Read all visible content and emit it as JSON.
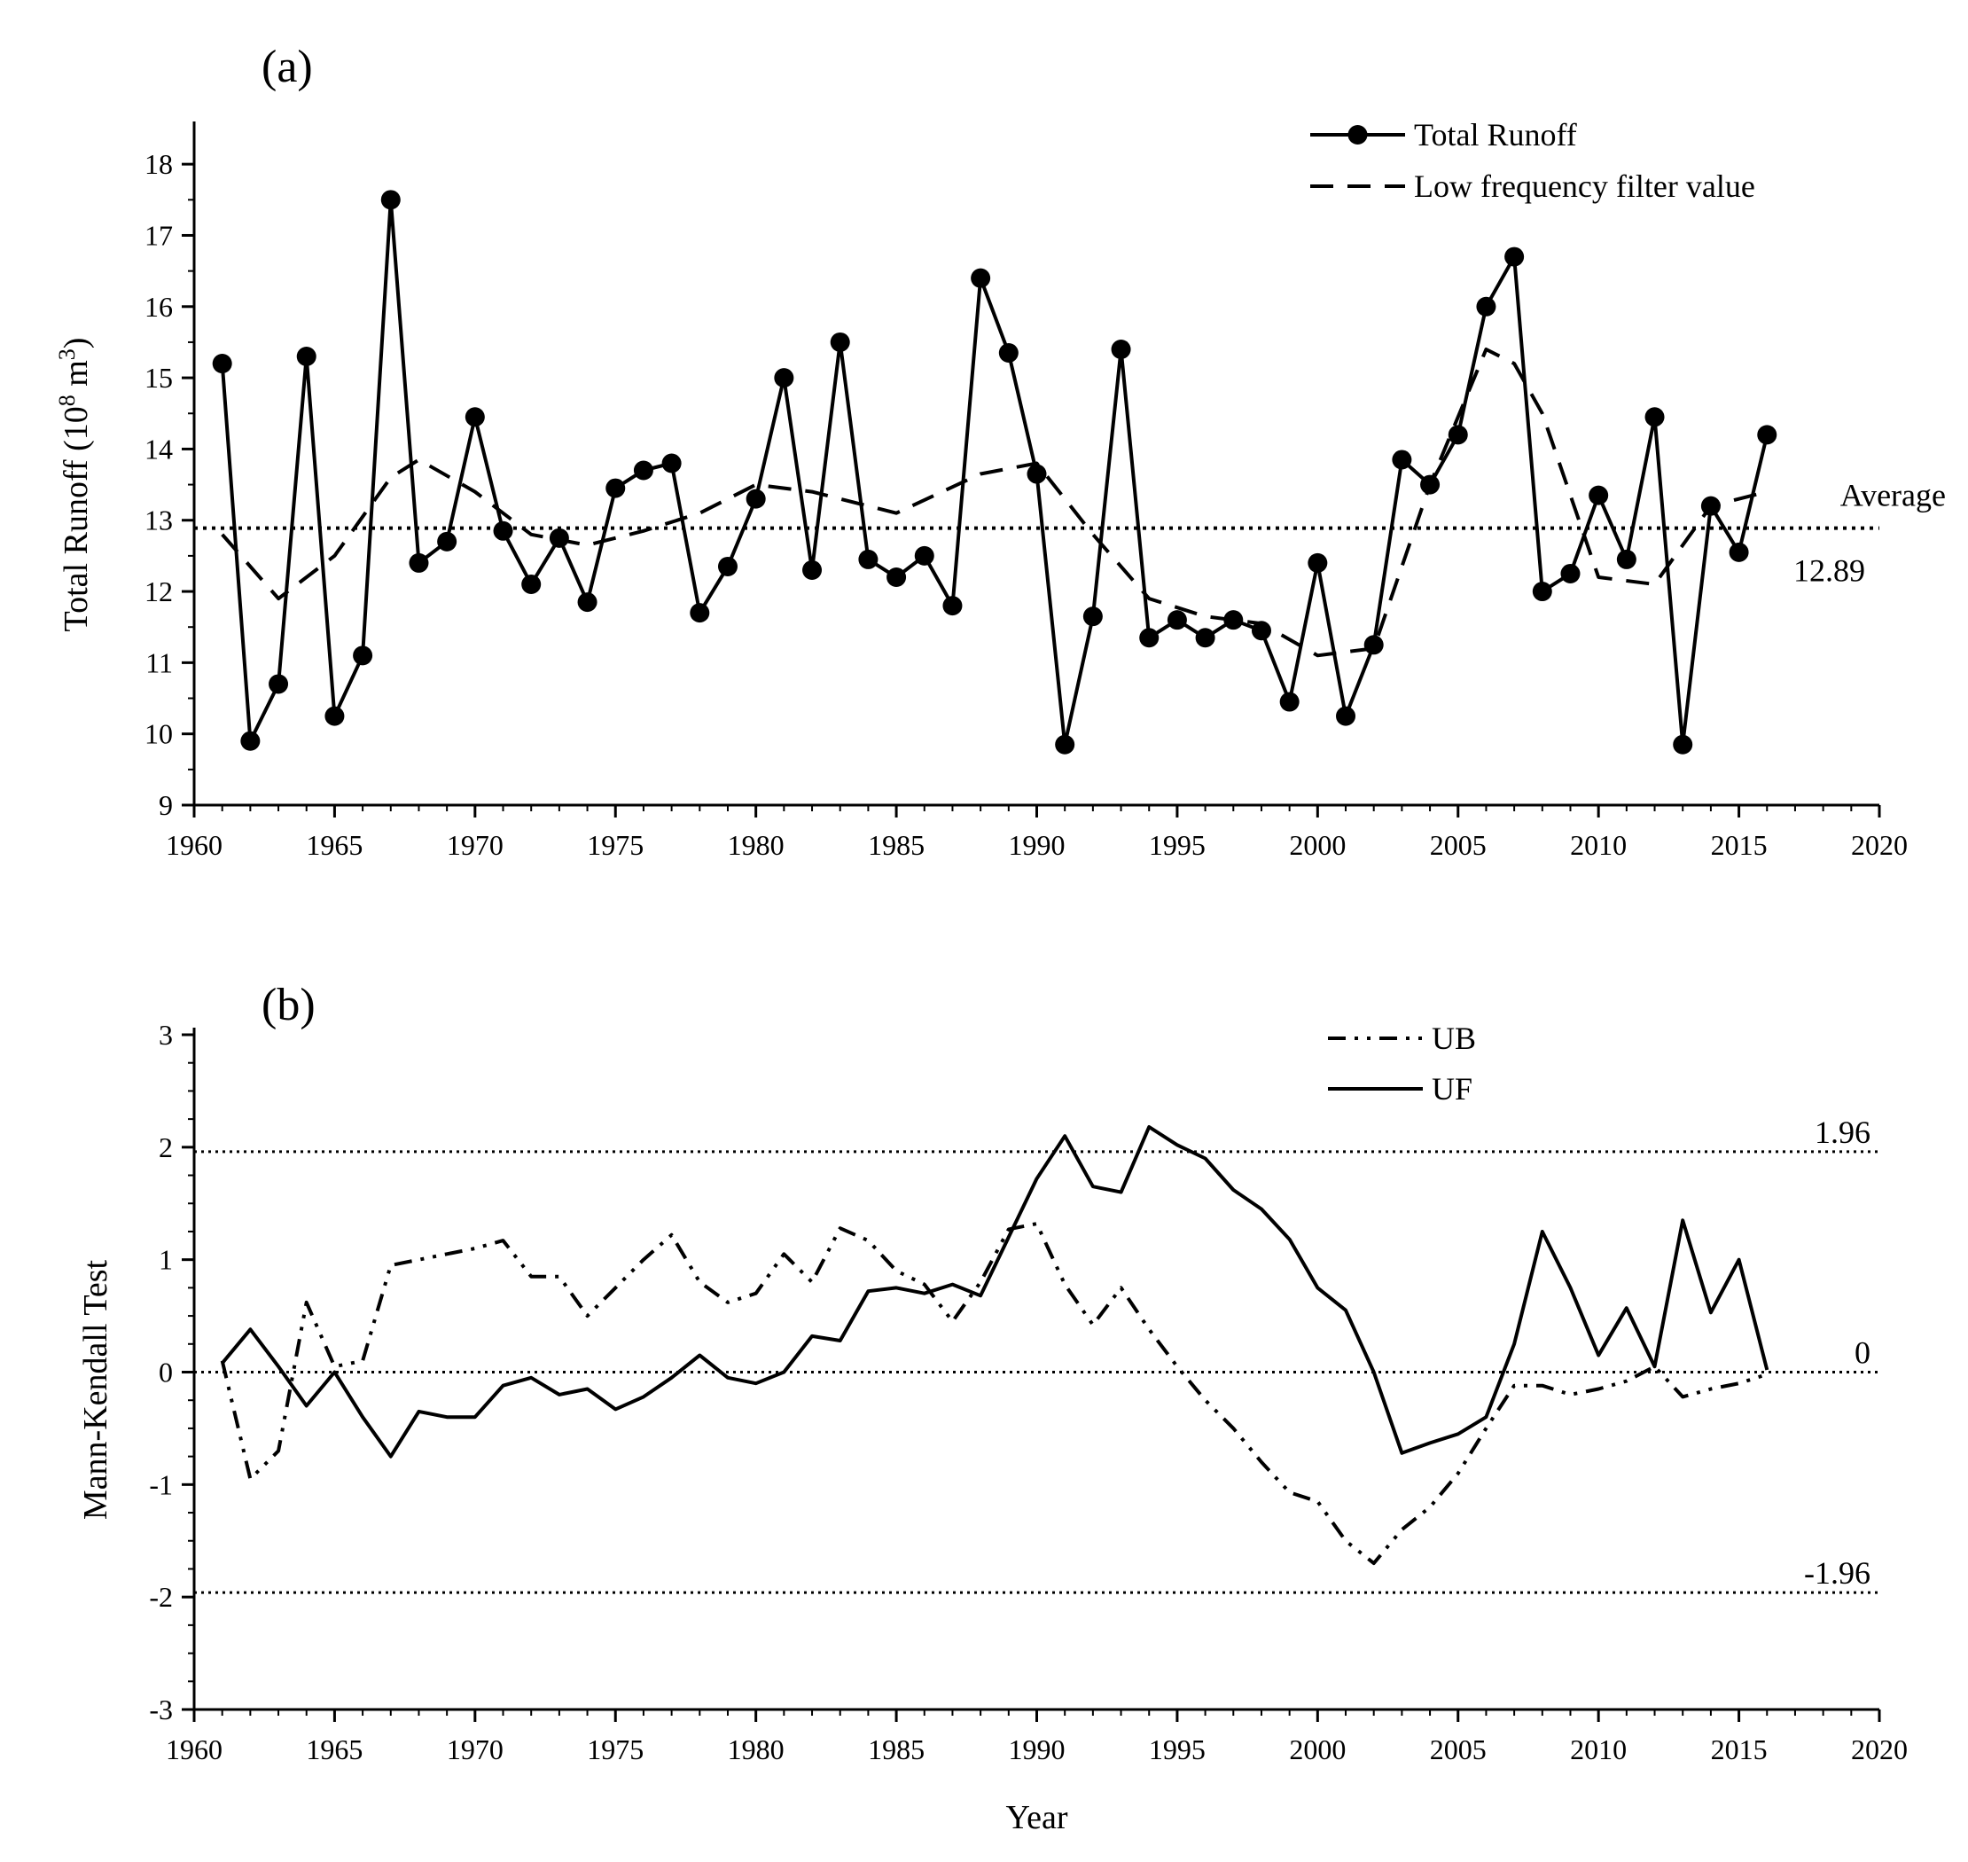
{
  "chart_data": [
    {
      "id": "a",
      "type": "line",
      "panel_label": "(a)",
      "title": "",
      "xlabel": "",
      "ylabel": "Total Runoff (10",
      "ylabel_sup1": "8",
      "ylabel_mid": " m",
      "ylabel_sup2": "3",
      "ylabel_end": ")",
      "xlim": [
        1960,
        2020
      ],
      "ylim": [
        9,
        18.5
      ],
      "x_ticks": [
        "1960",
        "1965",
        "1970",
        "1975",
        "1980",
        "1985",
        "1990",
        "1995",
        "2000",
        "2005",
        "2010",
        "2015",
        "2020"
      ],
      "y_ticks": [
        "9",
        "10",
        "11",
        "12",
        "13",
        "14",
        "15",
        "16",
        "17",
        "18"
      ],
      "x": [
        1961,
        1962,
        1963,
        1964,
        1965,
        1966,
        1967,
        1968,
        1969,
        1970,
        1971,
        1972,
        1973,
        1974,
        1975,
        1976,
        1977,
        1978,
        1979,
        1980,
        1981,
        1982,
        1983,
        1984,
        1985,
        1986,
        1987,
        1988,
        1989,
        1990,
        1991,
        1992,
        1993,
        1994,
        1995,
        1996,
        1997,
        1998,
        1999,
        2000,
        2001,
        2002,
        2003,
        2004,
        2005,
        2006,
        2007,
        2008,
        2009,
        2010,
        2011,
        2012,
        2013,
        2014,
        2015,
        2016
      ],
      "series": [
        {
          "name": "Total Runoff",
          "style": "solid-markers",
          "values": [
            15.2,
            9.9,
            10.7,
            15.3,
            10.25,
            11.1,
            17.5,
            12.4,
            12.7,
            14.45,
            12.85,
            12.1,
            12.75,
            11.85,
            13.45,
            13.7,
            13.8,
            11.7,
            12.35,
            13.3,
            15.0,
            12.3,
            15.5,
            12.45,
            12.2,
            12.5,
            11.8,
            16.4,
            15.35,
            13.65,
            9.85,
            11.65,
            15.4,
            11.35,
            11.6,
            11.35,
            11.6,
            11.45,
            10.45,
            12.4,
            10.25,
            11.25,
            13.85,
            13.5,
            14.2,
            16.0,
            16.7,
            12.0,
            12.25,
            13.35,
            12.45,
            14.45,
            9.85,
            13.2,
            12.55,
            14.2
          ]
        },
        {
          "name": "Low frequency filter value",
          "style": "dashed",
          "x": [
            1961,
            1963,
            1965,
            1967,
            1968,
            1970,
            1972,
            1974,
            1976,
            1978,
            1980,
            1982,
            1985,
            1988,
            1990,
            1992,
            1994,
            1996,
            1998,
            2000,
            2002,
            2004,
            2006,
            2007,
            2008,
            2010,
            2012,
            2014,
            2016
          ],
          "values": [
            12.8,
            11.9,
            12.5,
            13.6,
            13.85,
            13.4,
            12.8,
            12.65,
            12.85,
            13.1,
            13.5,
            13.4,
            13.1,
            13.65,
            13.8,
            12.8,
            11.9,
            11.65,
            11.55,
            11.1,
            11.2,
            13.5,
            15.4,
            15.2,
            14.5,
            12.2,
            12.1,
            13.2,
            13.4
          ]
        }
      ],
      "reference_line": {
        "value": 12.89,
        "label": "Average",
        "value_label": "12.89"
      },
      "legend": [
        "Total Runoff",
        "Low frequency filter value"
      ],
      "legend_position": "top-right"
    },
    {
      "id": "b",
      "type": "line",
      "panel_label": "(b)",
      "title": "",
      "xlabel": "Year",
      "ylabel": "Mann-Kendall Test",
      "xlim": [
        1960,
        2020
      ],
      "ylim": [
        -3,
        3
      ],
      "x_ticks": [
        "1960",
        "1965",
        "1970",
        "1975",
        "1980",
        "1985",
        "1990",
        "1995",
        "2000",
        "2005",
        "2010",
        "2015",
        "2020"
      ],
      "y_ticks": [
        "-3",
        "-2",
        "-1",
        "0",
        "1",
        "2",
        "3"
      ],
      "x": [
        1961,
        1962,
        1963,
        1964,
        1965,
        1966,
        1967,
        1968,
        1969,
        1970,
        1971,
        1972,
        1973,
        1974,
        1975,
        1976,
        1977,
        1978,
        1979,
        1980,
        1981,
        1982,
        1983,
        1984,
        1985,
        1986,
        1987,
        1988,
        1989,
        1990,
        1991,
        1992,
        1993,
        1994,
        1995,
        1996,
        1997,
        1998,
        1999,
        2000,
        2001,
        2002,
        2003,
        2004,
        2005,
        2006,
        2007,
        2008,
        2009,
        2010,
        2011,
        2012,
        2013,
        2014,
        2015,
        2016
      ],
      "series": [
        {
          "name": "UB",
          "style": "dash-dot-dot",
          "values": [
            0.1,
            -0.95,
            -0.7,
            0.62,
            0.05,
            0.1,
            0.95,
            1.0,
            1.05,
            1.1,
            1.17,
            0.85,
            0.85,
            0.5,
            0.75,
            1.0,
            1.22,
            0.8,
            0.62,
            0.7,
            1.05,
            0.8,
            1.28,
            1.17,
            0.9,
            0.78,
            0.45,
            0.8,
            1.27,
            1.32,
            0.78,
            0.42,
            0.75,
            0.38,
            0.05,
            -0.25,
            -0.5,
            -0.8,
            -1.07,
            -1.15,
            -1.5,
            -1.7,
            -1.4,
            -1.2,
            -0.9,
            -0.5,
            -0.12,
            -0.12,
            -0.2,
            -0.15,
            -0.08,
            0.05,
            -0.22,
            -0.15,
            -0.1,
            -0.02
          ]
        },
        {
          "name": "UF",
          "style": "solid",
          "values": [
            0.08,
            0.38,
            0.05,
            -0.3,
            0.0,
            -0.4,
            -0.75,
            -0.35,
            -0.4,
            -0.4,
            -0.12,
            -0.05,
            -0.2,
            -0.15,
            -0.33,
            -0.22,
            -0.05,
            0.15,
            -0.05,
            -0.1,
            0.0,
            0.32,
            0.28,
            0.72,
            0.75,
            0.7,
            0.78,
            0.68,
            1.2,
            1.72,
            2.1,
            1.65,
            1.6,
            2.18,
            2.02,
            1.9,
            1.62,
            1.45,
            1.18,
            0.75,
            0.55,
            0.0,
            -0.72,
            -0.63,
            -0.55,
            -0.4,
            0.25,
            1.25,
            0.75,
            0.15,
            0.57,
            0.05,
            1.35,
            0.53,
            1.0,
            0.02
          ]
        }
      ],
      "reference_lines": [
        {
          "value": 1.96,
          "label": "1.96"
        },
        {
          "value": 0,
          "label": "0"
        },
        {
          "value": -1.96,
          "label": "-1.96"
        }
      ],
      "legend": [
        "UB",
        "UF"
      ],
      "legend_position": "top-center"
    }
  ]
}
